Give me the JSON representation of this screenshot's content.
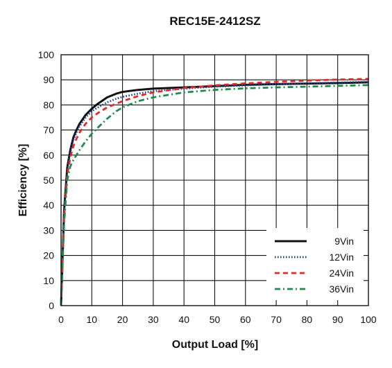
{
  "chart_data": {
    "type": "line",
    "title": "REC15E-2412SZ",
    "xlabel": "Output Load [%]",
    "ylabel": "Efficiency [%]",
    "xlim": [
      0,
      100
    ],
    "ylim": [
      0,
      100
    ],
    "xticks": [
      0,
      10,
      20,
      30,
      40,
      50,
      60,
      70,
      80,
      90,
      100
    ],
    "yticks": [
      0,
      10,
      20,
      30,
      40,
      50,
      60,
      70,
      80,
      90,
      100
    ],
    "grid": true,
    "legend_position": "bottom-right",
    "series": [
      {
        "name": "9Vin",
        "color": "#111111",
        "style": "solid",
        "x": [
          0,
          1,
          2,
          3,
          4,
          5,
          6,
          8,
          10,
          12,
          15,
          18,
          20,
          25,
          30,
          40,
          50,
          60,
          70,
          80,
          90,
          100
        ],
        "y": [
          0,
          38,
          55,
          62,
          67,
          70,
          72.5,
          76,
          78.5,
          80.5,
          83,
          84.5,
          85.2,
          86,
          86.5,
          87,
          87.5,
          88,
          88.3,
          88.5,
          88.7,
          89
        ]
      },
      {
        "name": "12Vin",
        "color": "#1f3f8f",
        "style": "dotted",
        "x": [
          0,
          1,
          2,
          3,
          4,
          5,
          6,
          8,
          10,
          12,
          15,
          18,
          20,
          25,
          30,
          40,
          50,
          60,
          70,
          80,
          90,
          100
        ],
        "y": [
          0,
          37,
          54,
          61,
          66,
          69,
          71.5,
          75,
          77.5,
          79,
          81,
          82.5,
          83.2,
          84.5,
          85.5,
          86.5,
          87.3,
          87.8,
          88.3,
          88.6,
          88.9,
          89.2
        ]
      },
      {
        "name": "24Vin",
        "color": "#e02b2b",
        "style": "dashed",
        "x": [
          0,
          1,
          2,
          3,
          4,
          5,
          6,
          8,
          10,
          12,
          15,
          18,
          20,
          25,
          30,
          40,
          50,
          60,
          70,
          80,
          90,
          100
        ],
        "y": [
          0,
          35,
          52,
          59,
          63.5,
          66.5,
          69,
          72.5,
          75,
          76.8,
          79,
          80.5,
          81.5,
          83.5,
          85,
          86.7,
          87.8,
          88.6,
          89.2,
          89.7,
          90.1,
          90.4
        ]
      },
      {
        "name": "36Vin",
        "color": "#1f8a4c",
        "style": "dashdot",
        "x": [
          0,
          1,
          2,
          3,
          4,
          5,
          6,
          8,
          10,
          12,
          15,
          18,
          20,
          25,
          30,
          40,
          50,
          60,
          70,
          80,
          90,
          100
        ],
        "y": [
          0,
          33,
          50,
          55.5,
          58,
          60,
          62,
          65.5,
          68.5,
          71,
          74.5,
          77.5,
          79,
          81.5,
          83,
          85,
          86,
          86.6,
          87,
          87.3,
          87.6,
          87.9
        ]
      }
    ]
  }
}
